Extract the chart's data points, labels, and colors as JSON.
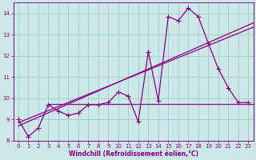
{
  "xlabel": "Windchill (Refroidissement éolien,°C)",
  "bg_color": "#cce8e8",
  "grid_color": "#aacccc",
  "line_color": "#880088",
  "xlim": [
    -0.5,
    23.5
  ],
  "ylim": [
    8,
    14.5
  ],
  "xticks": [
    0,
    1,
    2,
    3,
    4,
    5,
    6,
    7,
    8,
    9,
    10,
    11,
    12,
    13,
    14,
    15,
    16,
    17,
    18,
    19,
    20,
    21,
    22,
    23
  ],
  "yticks": [
    8,
    9,
    10,
    11,
    12,
    13,
    14
  ],
  "tick_fontsize": 5,
  "label_fontsize": 5.5,
  "hours": [
    0,
    1,
    2,
    3,
    4,
    5,
    6,
    7,
    8,
    9,
    10,
    11,
    12,
    13,
    14,
    15,
    16,
    17,
    18,
    19,
    20,
    21,
    22,
    23
  ],
  "spiky_y": [
    9.0,
    8.2,
    8.6,
    9.7,
    9.4,
    9.2,
    9.3,
    9.7,
    9.7,
    9.8,
    10.3,
    10.1,
    8.9,
    12.2,
    9.9,
    13.85,
    13.65,
    14.25,
    13.85,
    12.6,
    11.4,
    10.5,
    9.8,
    9.8
  ],
  "hline_y": 9.75,
  "hline_x0": 3.0,
  "hline_x1": 23.5,
  "trend_x0": 0.0,
  "trend_y0": 8.7,
  "trend_x1": 23.5,
  "trend_y1": 13.55,
  "smooth_x0": 0.0,
  "smooth_y0": 8.85,
  "smooth_x1": 23.5,
  "smooth_y1": 13.35,
  "lw": 0.9,
  "ms": 2.5
}
